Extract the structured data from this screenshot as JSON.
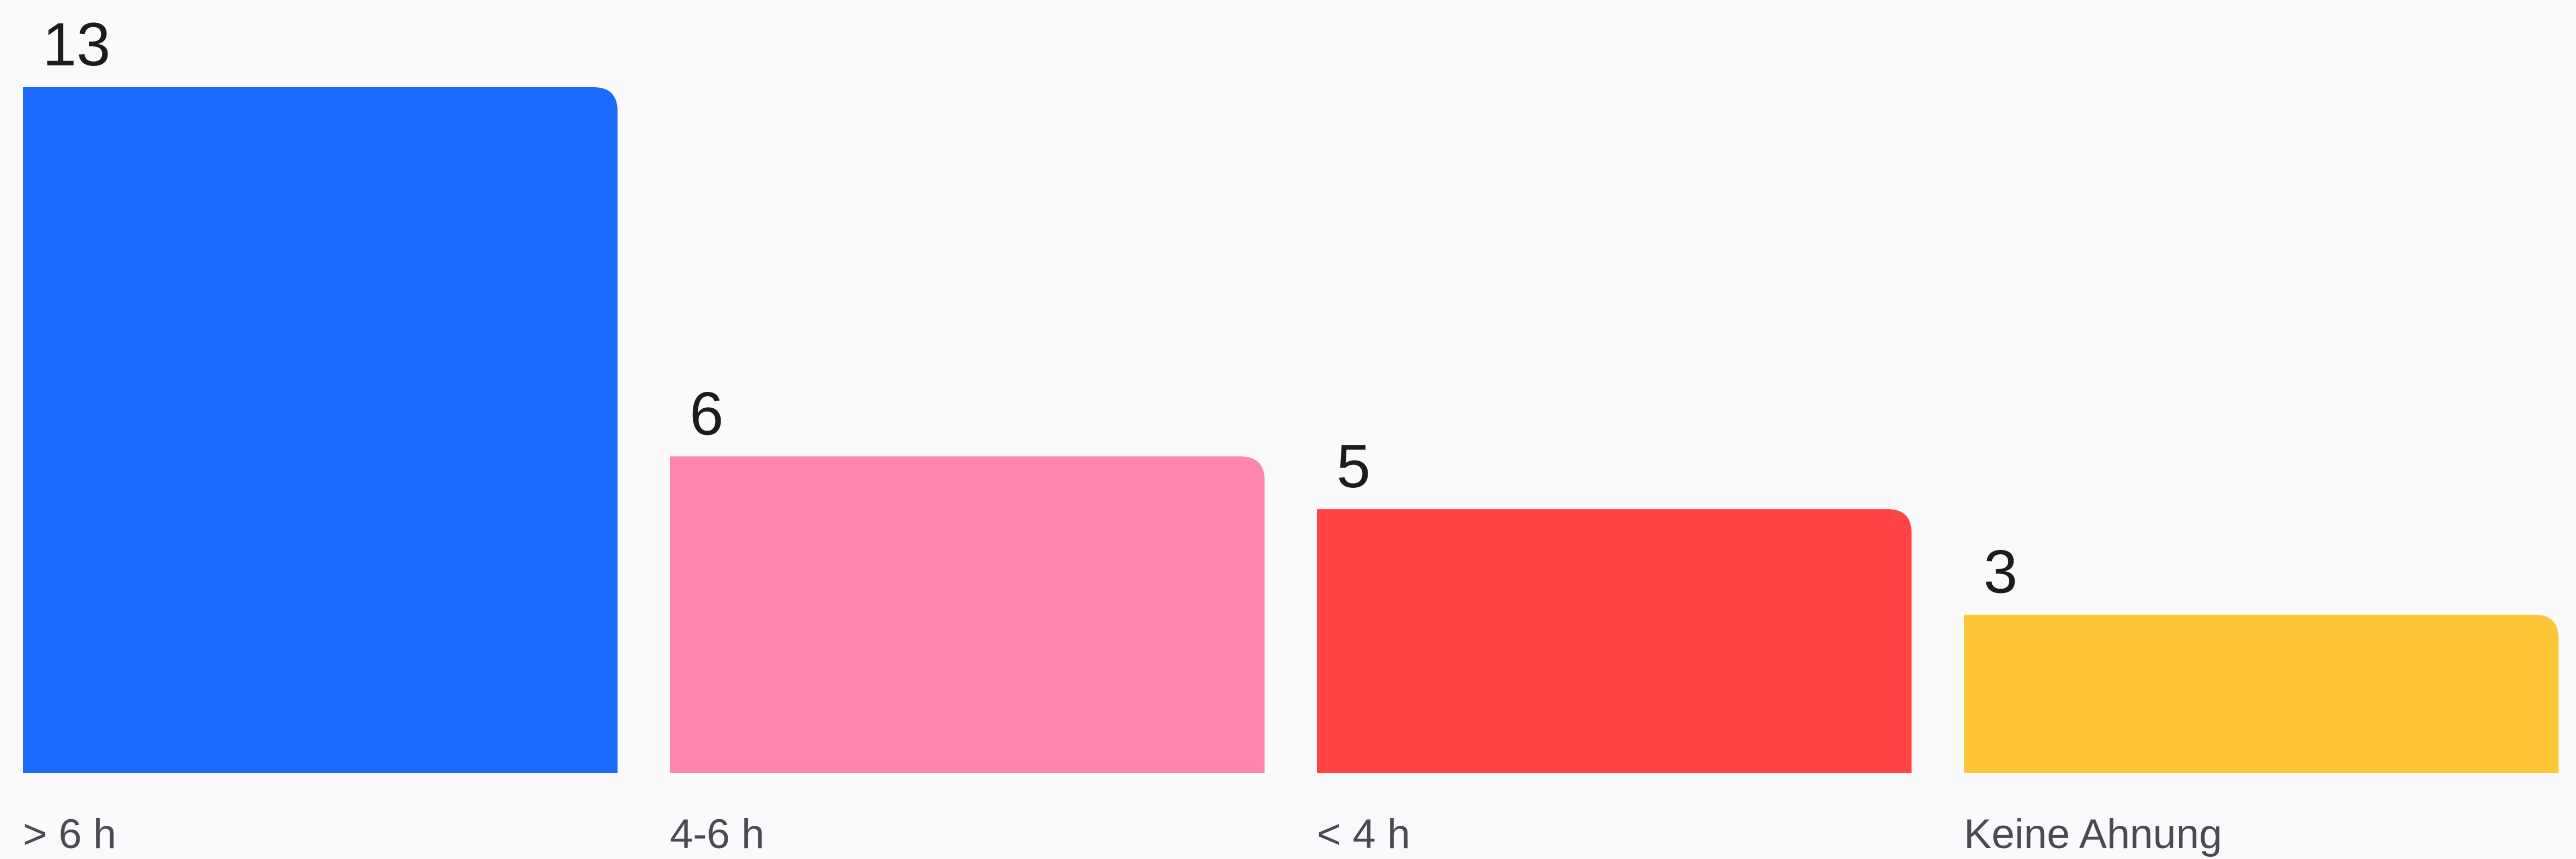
{
  "chart_data": {
    "type": "bar",
    "categories": [
      "> 6 h",
      "4-6 h",
      "< 4 h",
      "Keine Ahnung"
    ],
    "values": [
      13,
      6,
      5,
      3
    ],
    "colors": [
      "#1c6bff",
      "#ff85ad",
      "#ff4242",
      "#ffc638"
    ],
    "title": "",
    "xlabel": "",
    "ylabel": "",
    "ylim": [
      0,
      13
    ],
    "grid": false,
    "legend": "none"
  }
}
